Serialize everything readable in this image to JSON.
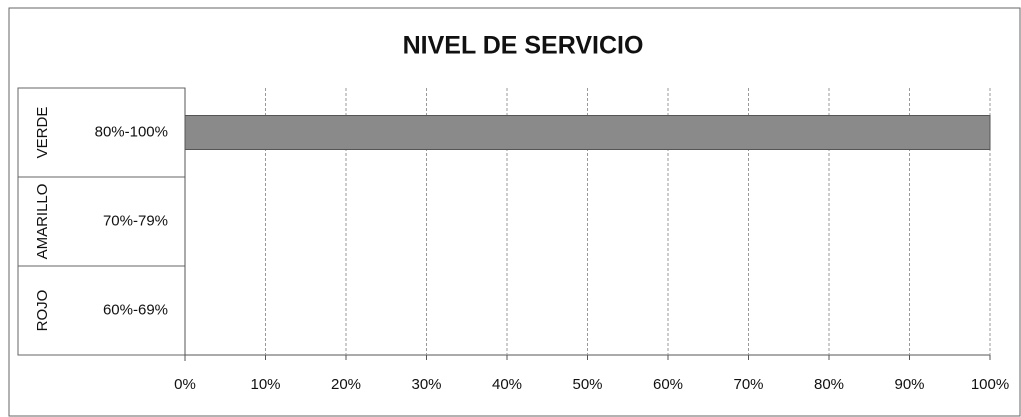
{
  "chart_data": {
    "type": "bar",
    "orientation": "horizontal",
    "title": "NIVEL DE SERVICIO",
    "groups": [
      "VERDE",
      "AMARILLO",
      "ROJO"
    ],
    "categories": [
      "80%-100%",
      "70%-79%",
      "60%-69%"
    ],
    "values": [
      100,
      0,
      0
    ],
    "color": "#8a8a8a",
    "xlim": [
      0,
      100
    ],
    "xticks": [
      {
        "value": 0,
        "label": "0%"
      },
      {
        "value": 10,
        "label": "10%"
      },
      {
        "value": 20,
        "label": "20%"
      },
      {
        "value": 30,
        "label": "30%"
      },
      {
        "value": 40,
        "label": "40%"
      },
      {
        "value": 50,
        "label": "50%"
      },
      {
        "value": 60,
        "label": "60%"
      },
      {
        "value": 70,
        "label": "70%"
      },
      {
        "value": 80,
        "label": "80%"
      },
      {
        "value": 90,
        "label": "90%"
      },
      {
        "value": 100,
        "label": "100%"
      }
    ],
    "grid": true
  }
}
